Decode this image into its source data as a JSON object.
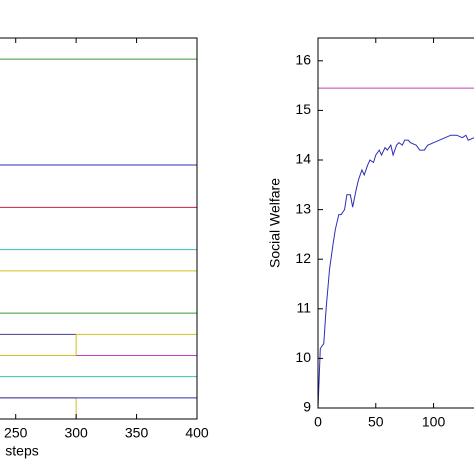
{
  "chart_data": [
    {
      "type": "line",
      "xlabel": "steps",
      "xlim": [
        237,
        400
      ],
      "ylim": [
        0,
        18
      ],
      "xticks": [
        250,
        300,
        350,
        400
      ],
      "series": [
        {
          "color": "#3a9a3a",
          "x": [
            237,
            400
          ],
          "values": [
            17,
            17
          ]
        },
        {
          "color": "#2d2db4",
          "x": [
            237,
            400
          ],
          "values": [
            12,
            12
          ]
        },
        {
          "color": "#c8203c",
          "x": [
            237,
            400
          ],
          "values": [
            10,
            10
          ]
        },
        {
          "color": "#2cc4c4",
          "x": [
            237,
            400
          ],
          "values": [
            8,
            8
          ]
        },
        {
          "color": "#d2c020",
          "x": [
            237,
            400
          ],
          "values": [
            7,
            7
          ]
        },
        {
          "color": "#3a9a3a",
          "x": [
            237,
            400
          ],
          "values": [
            5,
            5
          ]
        },
        {
          "color": "#4b3c8c",
          "x": [
            237,
            300
          ],
          "values": [
            4,
            4
          ]
        },
        {
          "color": "#d2c020",
          "x": [
            237,
            300,
            300,
            400
          ],
          "values": [
            3,
            3,
            4,
            4
          ]
        },
        {
          "color": "#c040c0",
          "x": [
            300,
            400
          ],
          "values": [
            3,
            3
          ]
        },
        {
          "color": "#2cc4c4",
          "x": [
            237,
            400
          ],
          "values": [
            2,
            2
          ]
        },
        {
          "color": "#d2c020",
          "x": [
            237,
            300,
            300,
            400
          ],
          "values": [
            1,
            1,
            0,
            0
          ]
        },
        {
          "color": "#2d2db4",
          "x": [
            237,
            400
          ],
          "values": [
            1,
            1
          ]
        },
        {
          "color": "#c8203c",
          "x": [
            237,
            400
          ],
          "values": [
            0,
            0
          ]
        }
      ]
    },
    {
      "type": "line",
      "ylabel": "Social Welfare",
      "xlim": [
        0,
        135
      ],
      "ylim": [
        9,
        16.46
      ],
      "xticks": [
        0,
        50,
        100
      ],
      "yticks": [
        9,
        10,
        11,
        12,
        13,
        14,
        15,
        16
      ],
      "series": [
        {
          "color": "#c040c0",
          "x": [
            0,
            135
          ],
          "values": [
            15.45,
            15.45
          ]
        },
        {
          "color": "#2d2db4",
          "x": [
            0,
            2,
            5,
            7,
            10,
            13,
            15,
            18,
            20,
            23,
            25,
            28,
            30,
            33,
            35,
            38,
            40,
            43,
            45,
            48,
            50,
            53,
            55,
            58,
            60,
            63,
            65,
            68,
            70,
            73,
            75,
            78,
            80,
            85,
            88,
            92,
            95,
            100,
            105,
            110,
            115,
            120,
            125,
            128,
            130,
            135
          ],
          "values": [
            9,
            10.2,
            10.3,
            11.0,
            11.8,
            12.3,
            12.6,
            12.9,
            12.9,
            13.0,
            13.3,
            13.3,
            13.05,
            13.4,
            13.6,
            13.8,
            13.7,
            13.9,
            14.0,
            13.95,
            14.1,
            14.2,
            14.1,
            14.25,
            14.2,
            14.3,
            14.1,
            14.3,
            14.35,
            14.3,
            14.4,
            14.4,
            14.35,
            14.3,
            14.2,
            14.2,
            14.3,
            14.35,
            14.4,
            14.45,
            14.5,
            14.5,
            14.45,
            14.5,
            14.4,
            14.45
          ]
        }
      ]
    }
  ]
}
